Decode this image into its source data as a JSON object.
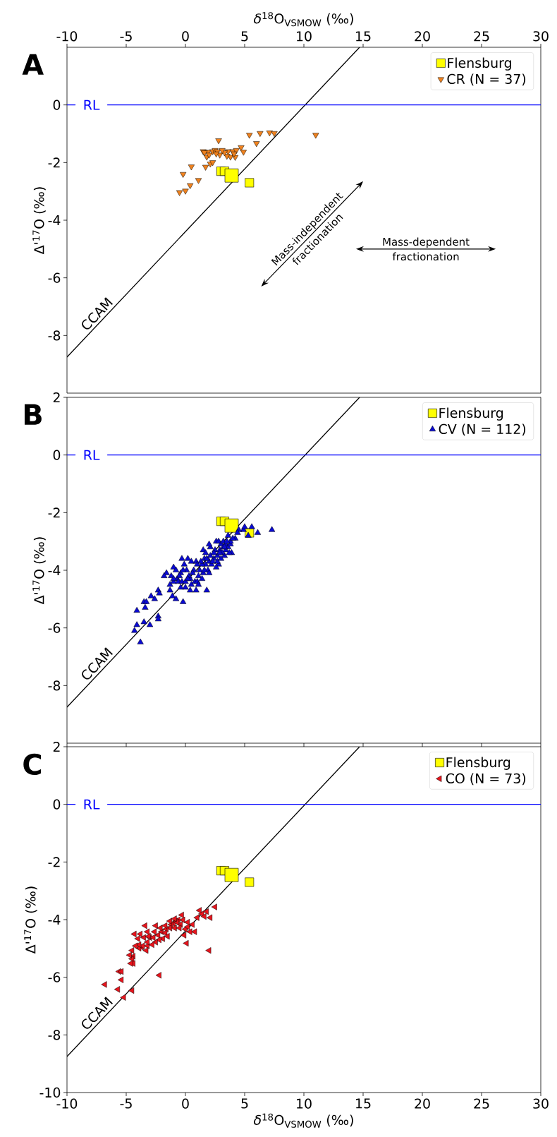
{
  "chart_data": [
    {
      "type": "scatter",
      "title": "A",
      "xlabel": "*δ*$^{18}$O$_{VSMOW}$ (‰)",
      "ylabel": "Δ'$^{17}$O (‰)",
      "xlim": [
        -10,
        30
      ],
      "xticks": [
        -10,
        -5,
        0,
        5,
        10,
        15,
        20,
        25,
        30
      ],
      "ylim": [
        -10,
        2
      ],
      "yticks": [
        -8,
        -6,
        -4,
        -2,
        0
      ],
      "legend": "top right",
      "ref_lines": [
        {
          "axis": "y",
          "value": 0,
          "label": "RL",
          "color": "#0000ff"
        }
      ],
      "annotations": [
        "Mass-independent fractionation",
        "Mass-dependent fractionation"
      ],
      "series": [
        {
          "name": "Flensburg",
          "type": "bubble",
          "marker": "square",
          "color": "#ffff00",
          "x": [
            3.0,
            3.3,
            3.9,
            5.4
          ],
          "values": [
            -2.3,
            -2.3,
            -2.45,
            -2.7
          ],
          "sizes": [
            0.42,
            0.42,
            1,
            0.42
          ]
        },
        {
          "name": "CR (N = 37)",
          "marker": "triangle_down",
          "color": "#f0821e",
          "x": [
            2.8,
            5.4,
            6.3,
            7.1,
            7.5,
            6.0,
            11.0,
            1.5,
            1.9,
            2.3,
            2.5,
            2.7,
            2.9,
            1.8,
            3.6,
            3.8,
            4.0,
            4.3,
            4.7,
            4.9,
            4.2,
            3.5,
            2.1,
            2.3,
            1.7,
            0.5,
            -0.2,
            1.1,
            0.4,
            0.0,
            -0.5,
            2.6,
            3.3,
            4.1,
            1.6,
            3.1,
            2.0
          ],
          "values": [
            -1.23,
            -1.04,
            -0.98,
            -0.96,
            -0.98,
            -1.33,
            -1.04,
            -1.61,
            -1.63,
            -1.61,
            -1.57,
            -1.61,
            -1.73,
            -1.8,
            -1.61,
            -1.8,
            -1.61,
            -1.57,
            -1.47,
            -1.63,
            -1.81,
            -1.77,
            -2.04,
            -1.99,
            -2.15,
            -2.14,
            -2.4,
            -2.61,
            -2.79,
            -2.98,
            -3.03,
            -1.69,
            -1.65,
            -1.69,
            -1.65,
            -1.57,
            -1.73
          ]
        },
        {
          "name": "CCAM",
          "type": "line",
          "color": "#000000",
          "x": [
            -10,
            14.7
          ],
          "values": [
            -8.75,
            2.0
          ]
        }
      ]
    },
    {
      "type": "scatter",
      "title": "B",
      "ylabel": "Δ'$^{17}$O (‰)",
      "xlim": [
        -10,
        30
      ],
      "xticks": [
        -10,
        -5,
        0,
        5,
        10,
        15,
        20,
        25,
        30
      ],
      "ylim": [
        -10,
        2
      ],
      "yticks": [
        -8,
        -6,
        -4,
        -2,
        0,
        2
      ],
      "tick_labels": "y",
      "legend": "top right",
      "ref_lines": [
        {
          "axis": "y",
          "value": 0,
          "label": "RL",
          "color": "#0000ff"
        }
      ],
      "series": [
        {
          "name": "Flensburg",
          "type": "bubble",
          "marker": "square",
          "color": "#ffff00",
          "x": [
            3.0,
            3.3,
            3.9,
            5.4
          ],
          "values": [
            -2.3,
            -2.3,
            -2.45,
            -2.7
          ],
          "sizes": [
            0.42,
            0.42,
            1,
            0.42
          ]
        },
        {
          "name": "CV (N = 112)",
          "marker": "triangle",
          "color": "#0a0ad2",
          "x": [
            -3.8,
            -4.3,
            -4.1,
            -3.5,
            -3.0,
            -4.1,
            -3.4,
            -3.5,
            -3.3,
            -2.9,
            -2.6,
            -2.3,
            -2.2,
            -2.3,
            -2.3,
            -1.1,
            -0.8,
            -0.2,
            -1.6,
            -1.2,
            -1.0,
            -1.3,
            -1.0,
            -0.7,
            -0.4,
            -0.3,
            0.2,
            -0.1,
            0.1,
            -0.6,
            -0.3,
            0.0,
            0.5,
            0.4,
            0.8,
            0.9,
            1.2,
            0.5,
            1.1,
            1.5,
            1.4,
            0.9,
            1.8,
            1.0,
            0.0,
            0.3,
            0.7,
            1.5,
            1.7,
            1.6,
            2.0,
            2.2,
            1.9,
            2.4,
            2.7,
            2.8,
            2.5,
            2.1,
            2.6,
            2.8,
            3.0,
            3.2,
            3.4,
            3.6,
            3.8,
            3.9,
            3.3,
            3.4,
            2.9,
            3.1,
            2.4,
            2.7,
            3.0,
            1.7,
            1.6,
            1.4,
            3.6,
            4.2,
            4.9,
            4.5,
            3.8,
            3.2,
            5.0,
            5.6,
            6.1,
            7.3,
            5.3,
            -0.8,
            -0.5,
            -0.2,
            0.2,
            0.6,
            1.0,
            1.3,
            1.8,
            2.1,
            2.3,
            2.6,
            2.9,
            3.3,
            3.5,
            4.0,
            4.4,
            2.0,
            1.1,
            0.4,
            -0.4,
            -1.0,
            -1.3,
            -1.8,
            2.0,
            3.7
          ],
          "values": [
            -6.5,
            -6.1,
            -5.9,
            -5.8,
            -5.9,
            -5.4,
            -5.3,
            -5.1,
            -5.1,
            -4.9,
            -5.0,
            -4.7,
            -4.8,
            -5.6,
            -5.7,
            -4.9,
            -5.0,
            -5.1,
            -4.1,
            -4.2,
            -3.9,
            -4.5,
            -4.4,
            -4.3,
            -4.1,
            -3.6,
            -3.6,
            -3.8,
            -4.0,
            -4.4,
            -4.4,
            -4.6,
            -4.5,
            -4.3,
            -4.4,
            -3.7,
            -4.0,
            -3.7,
            -4.2,
            -4.1,
            -4.3,
            -4.7,
            -4.7,
            -4.4,
            -4.4,
            -4.2,
            -4.0,
            -3.3,
            -3.4,
            -3.6,
            -3.7,
            -3.8,
            -4.0,
            -3.6,
            -3.5,
            -3.8,
            -3.3,
            -3.2,
            -3.0,
            -3.0,
            -3.1,
            -3.0,
            -3.1,
            -3.2,
            -3.1,
            -3.4,
            -3.5,
            -3.3,
            -3.3,
            -3.4,
            -3.4,
            -3.7,
            -3.6,
            -3.8,
            -4.0,
            -3.8,
            -2.8,
            -2.9,
            -2.6,
            -2.6,
            -3.0,
            -3.2,
            -2.5,
            -2.5,
            -2.7,
            -2.6,
            -2.8,
            -4.0,
            -4.2,
            -4.0,
            -4.3,
            -4.1,
            -3.8,
            -3.7,
            -3.6,
            -3.5,
            -3.7,
            -3.9,
            -3.4,
            -3.2,
            -3.0,
            -2.9,
            -2.7,
            -4.1,
            -4.5,
            -4.7,
            -4.6,
            -4.3,
            -4.7,
            -4.2,
            -3.1,
            -3.4
          ]
        },
        {
          "name": "CCAM",
          "type": "line",
          "color": "#000000",
          "x": [
            -10,
            14.7
          ],
          "values": [
            -8.75,
            2.0
          ]
        }
      ]
    },
    {
      "type": "scatter",
      "title": "C",
      "xlabel": "*δ*$^{18}$O$_{VSMOW}$ (‰)",
      "ylabel": "Δ'$^{17}$O (‰)",
      "xlim": [
        -10,
        30
      ],
      "xticks": [
        -10,
        -5,
        0,
        5,
        10,
        15,
        20,
        25,
        30
      ],
      "ylim": [
        -10,
        2
      ],
      "yticks": [
        -10,
        -8,
        -6,
        -4,
        -2,
        0,
        2
      ],
      "legend": "top right",
      "ref_lines": [
        {
          "axis": "y",
          "value": 0,
          "label": "RL",
          "color": "#0000ff"
        }
      ],
      "series": [
        {
          "name": "Flensburg",
          "type": "bubble",
          "marker": "square",
          "color": "#ffff00",
          "x": [
            3.0,
            3.3,
            3.9,
            5.4
          ],
          "values": [
            -2.3,
            -2.3,
            -2.45,
            -2.7
          ],
          "sizes": [
            0.42,
            0.42,
            1,
            0.42
          ]
        },
        {
          "name": "CO (N = 73)",
          "marker": "triangle_left",
          "color": "#e8141c",
          "x": [
            2.5,
            1.8,
            1.2,
            1.4,
            2.1,
            1.0,
            0.6,
            -0.3,
            -0.6,
            -0.8,
            -0.4,
            -1.0,
            -1.2,
            -0.7,
            -0.9,
            -1.3,
            -1.6,
            0.0,
            0.2,
            -0.1,
            0.1,
            -2.0,
            -2.3,
            -2.6,
            -1.9,
            -2.2,
            -2.5,
            -3.0,
            -3.2,
            -3.5,
            -3.8,
            -4.3,
            -3.4,
            -2.8,
            -3.2,
            -3.3,
            -3.7,
            -3.9,
            -4.5,
            -4.4,
            -4.5,
            -4.4,
            -4.6,
            2.0,
            -5.6,
            -5.4,
            -5.7,
            -6.8,
            -4.5,
            -5.2,
            -2.2,
            -1.7,
            -1.5,
            -2.1,
            0.2,
            0.8,
            -2.5,
            -1.3,
            0.4,
            -3.2,
            -3.6,
            -4.0,
            -0.5,
            -0.2,
            1.6,
            -3.1,
            -1.7,
            -3.9,
            -5.4,
            -0.9,
            -2.7,
            -4.2,
            -4.7
          ],
          "values": [
            -3.56,
            -3.72,
            -3.68,
            -3.8,
            -3.93,
            -3.93,
            -4.17,
            -3.84,
            -4.01,
            -4.05,
            -4.17,
            -4.13,
            -4.17,
            -4.09,
            -4.29,
            -4.29,
            -4.33,
            -4.33,
            -4.25,
            -4.54,
            -4.82,
            -4.42,
            -4.54,
            -4.42,
            -4.66,
            -4.7,
            -4.78,
            -4.62,
            -4.42,
            -4.62,
            -4.5,
            -4.5,
            -4.21,
            -4.87,
            -4.91,
            -5.07,
            -4.95,
            -4.99,
            -5.07,
            -5.27,
            -5.36,
            -5.52,
            -5.52,
            -5.07,
            -5.8,
            -6.09,
            -6.42,
            -6.25,
            -6.46,
            -6.7,
            -5.93,
            -4.46,
            -4.58,
            -4.29,
            -4.09,
            -4.42,
            -4.21,
            -4.05,
            -4.42,
            -4.78,
            -4.91,
            -4.66,
            -4.29,
            -4.01,
            -3.89,
            -4.58,
            -4.21,
            -4.87,
            -5.8,
            -3.97,
            -4.62,
            -4.91,
            -5.23
          ]
        },
        {
          "name": "CCAM",
          "type": "line",
          "color": "#000000",
          "x": [
            -10,
            14.7
          ],
          "values": [
            -8.75,
            2.0
          ]
        }
      ]
    }
  ]
}
